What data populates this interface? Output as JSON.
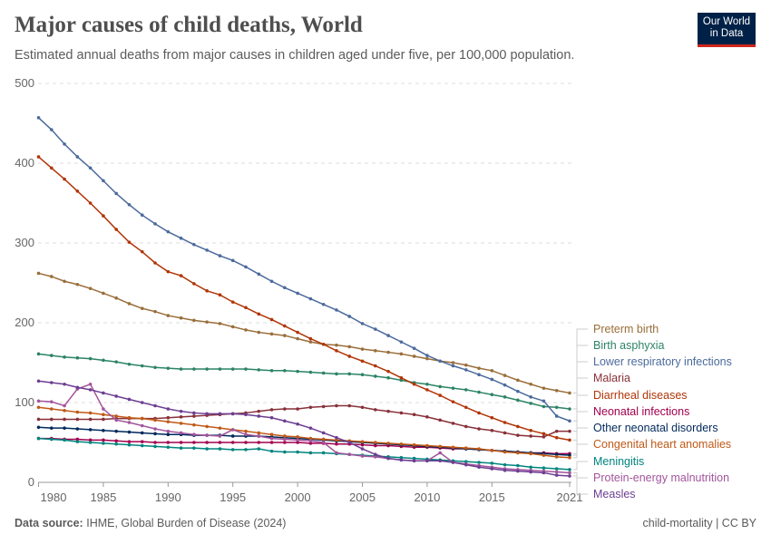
{
  "header": {
    "title": "Major causes of child deaths, World",
    "subtitle": "Estimated annual deaths from major causes in children aged under five, per 100,000 population.",
    "logo": "Our World in Data"
  },
  "footer": {
    "source_label": "Data source:",
    "source": "IHME, Global Burden of Disease (2024)",
    "right": "child-mortality | CC BY"
  },
  "chart_data": {
    "type": "line",
    "title": "Major causes of child deaths, World",
    "xlabel": "",
    "ylabel": "",
    "ylim": [
      0,
      500
    ],
    "xlim": [
      1980,
      2021
    ],
    "yticks": [
      0,
      100,
      200,
      300,
      400,
      500
    ],
    "xticks": [
      1980,
      1985,
      1990,
      1995,
      2000,
      2005,
      2010,
      2015,
      2021
    ],
    "grid": "horizontal dashed",
    "legend": "right, labels at line ends",
    "x": [
      1980,
      1981,
      1982,
      1983,
      1984,
      1985,
      1986,
      1987,
      1988,
      1989,
      1990,
      1991,
      1992,
      1993,
      1994,
      1995,
      1996,
      1997,
      1998,
      1999,
      2000,
      2001,
      2002,
      2003,
      2004,
      2005,
      2006,
      2007,
      2008,
      2009,
      2010,
      2011,
      2012,
      2013,
      2014,
      2015,
      2016,
      2017,
      2018,
      2019,
      2020,
      2021
    ],
    "series": [
      {
        "name": "Preterm birth",
        "color": "#9a6e3a",
        "values": [
          262,
          258,
          252,
          248,
          243,
          237,
          231,
          224,
          218,
          214,
          209,
          206,
          203,
          201,
          199,
          195,
          191,
          188,
          186,
          184,
          180,
          176,
          173,
          172,
          170,
          167,
          165,
          163,
          161,
          158,
          155,
          152,
          150,
          147,
          143,
          140,
          134,
          128,
          123,
          118,
          115,
          112
        ]
      },
      {
        "name": "Birth asphyxia",
        "color": "#2c8465",
        "values": [
          161,
          159,
          157,
          156,
          155,
          153,
          151,
          148,
          146,
          144,
          143,
          142,
          142,
          142,
          142,
          142,
          142,
          141,
          140,
          140,
          139,
          138,
          137,
          136,
          136,
          135,
          133,
          131,
          128,
          125,
          123,
          120,
          118,
          116,
          113,
          110,
          107,
          103,
          99,
          95,
          94,
          92
        ]
      },
      {
        "name": "Lower respiratory infections",
        "color": "#4c6a9c",
        "values": [
          457,
          442,
          424,
          408,
          394,
          378,
          362,
          348,
          335,
          324,
          314,
          306,
          298,
          291,
          284,
          278,
          270,
          261,
          252,
          244,
          237,
          230,
          223,
          216,
          208,
          199,
          192,
          184,
          176,
          168,
          159,
          152,
          146,
          141,
          135,
          129,
          122,
          114,
          107,
          102,
          83,
          77
        ]
      },
      {
        "name": "Malaria",
        "color": "#883039",
        "values": [
          79,
          79,
          79,
          79,
          79,
          79,
          80,
          80,
          80,
          80,
          81,
          82,
          83,
          84,
          85,
          86,
          87,
          89,
          91,
          92,
          92,
          94,
          95,
          96,
          96,
          94,
          91,
          89,
          87,
          85,
          82,
          78,
          74,
          70,
          67,
          65,
          62,
          59,
          58,
          57,
          64,
          64
        ]
      },
      {
        "name": "Diarrheal diseases",
        "color": "#b13507",
        "values": [
          408,
          394,
          380,
          365,
          350,
          334,
          317,
          301,
          289,
          275,
          264,
          259,
          249,
          240,
          235,
          226,
          219,
          211,
          204,
          196,
          188,
          180,
          173,
          165,
          158,
          152,
          146,
          139,
          131,
          123,
          116,
          109,
          101,
          94,
          87,
          81,
          75,
          70,
          65,
          61,
          56,
          53
        ]
      },
      {
        "name": "Neonatal infections",
        "color": "#a2004f",
        "values": [
          55,
          55,
          54,
          54,
          53,
          53,
          52,
          51,
          51,
          50,
          50,
          50,
          50,
          50,
          50,
          50,
          50,
          50,
          50,
          50,
          50,
          49,
          49,
          48,
          48,
          47,
          46,
          46,
          45,
          44,
          44,
          43,
          42,
          42,
          41,
          40,
          39,
          38,
          37,
          37,
          36,
          36
        ]
      },
      {
        "name": "Other neonatal disorders",
        "color": "#00295b",
        "values": [
          69,
          68,
          68,
          67,
          66,
          65,
          64,
          63,
          62,
          61,
          60,
          60,
          59,
          59,
          59,
          58,
          58,
          58,
          57,
          56,
          55,
          54,
          53,
          52,
          51,
          50,
          49,
          48,
          47,
          46,
          45,
          44,
          43,
          42,
          41,
          40,
          39,
          38,
          37,
          36,
          35,
          34
        ]
      },
      {
        "name": "Congenital heart anomalies",
        "color": "#c05917",
        "values": [
          94,
          92,
          90,
          88,
          87,
          85,
          83,
          81,
          80,
          78,
          76,
          74,
          72,
          70,
          68,
          66,
          64,
          62,
          60,
          58,
          57,
          55,
          54,
          53,
          52,
          51,
          50,
          49,
          48,
          47,
          46,
          45,
          44,
          43,
          42,
          40,
          38,
          37,
          36,
          34,
          32,
          31
        ]
      },
      {
        "name": "Meningitis",
        "color": "#00847e",
        "values": [
          55,
          54,
          53,
          51,
          50,
          49,
          48,
          47,
          46,
          45,
          44,
          43,
          43,
          42,
          42,
          41,
          41,
          42,
          39,
          38,
          38,
          37,
          37,
          36,
          35,
          34,
          33,
          32,
          31,
          30,
          29,
          28,
          27,
          26,
          25,
          24,
          22,
          21,
          19,
          18,
          17,
          16
        ]
      },
      {
        "name": "Protein-energy malnutrition",
        "color": "#a2559c",
        "values": [
          102,
          101,
          96,
          117,
          123,
          92,
          78,
          75,
          71,
          67,
          64,
          62,
          60,
          59,
          58,
          66,
          60,
          58,
          55,
          54,
          53,
          52,
          50,
          37,
          35,
          33,
          32,
          30,
          28,
          27,
          27,
          37,
          25,
          23,
          21,
          19,
          17,
          16,
          15,
          14,
          13,
          12
        ]
      },
      {
        "name": "Measles",
        "color": "#6d3e91",
        "values": [
          127,
          125,
          123,
          119,
          116,
          112,
          108,
          104,
          100,
          96,
          92,
          89,
          87,
          86,
          86,
          86,
          85,
          83,
          81,
          77,
          73,
          68,
          62,
          56,
          50,
          42,
          35,
          30,
          28,
          27,
          27,
          27,
          25,
          22,
          19,
          17,
          15,
          14,
          13,
          12,
          9,
          8
        ]
      }
    ]
  }
}
